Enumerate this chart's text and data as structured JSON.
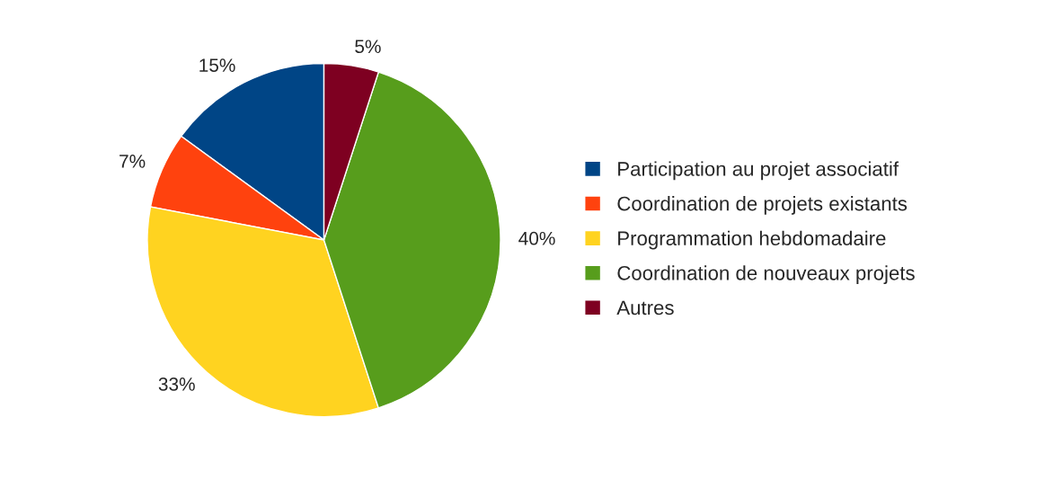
{
  "chart_data": {
    "type": "pie",
    "categories": [
      "Participation au projet associatif",
      "Coordination de projets existants",
      "Programmation hebdomadaire",
      "Coordination de nouveaux projets",
      "Autres"
    ],
    "values": [
      15,
      7,
      33,
      40,
      5
    ],
    "value_labels": [
      "15%",
      "7%",
      "33%",
      "40%",
      "5%"
    ],
    "colors": [
      "#004586",
      "#ff420e",
      "#ffd320",
      "#579d1c",
      "#7e0021"
    ],
    "legend": "right"
  }
}
